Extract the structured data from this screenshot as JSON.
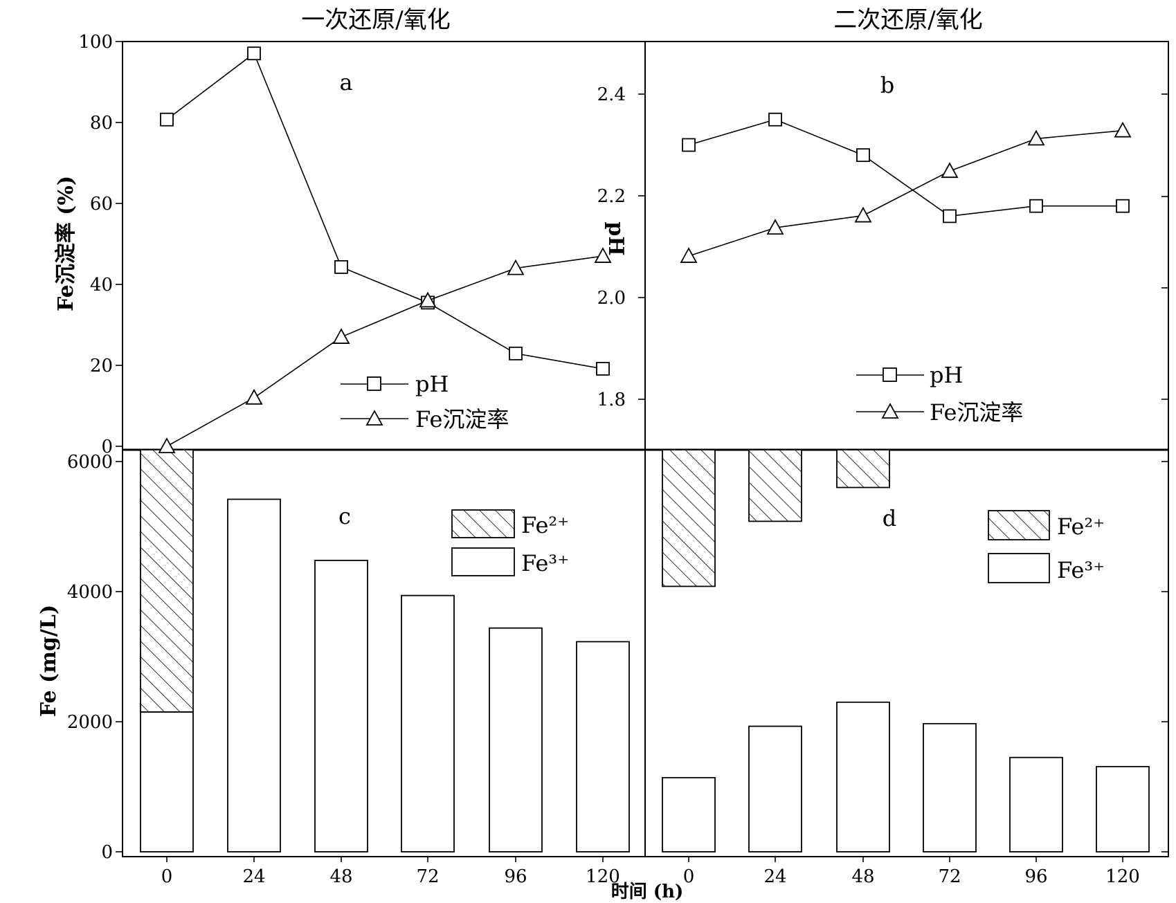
{
  "figure": {
    "titles": {
      "left": "一次还原/氧化",
      "right": "二次还原/氧化"
    },
    "left_axis_title_top": "Fe沉淀率 (%)",
    "right_axis_title_top": "pH",
    "left_axis_title_bottom": "Fe (mg/L)",
    "x_axis_title": "时间 (h)",
    "legend_line": {
      "ph": "pH",
      "fe": "Fe沉淀率"
    },
    "legend_bar": {
      "fe2": "Fe²⁺",
      "fe3": "Fe³⁺"
    },
    "panel_labels": [
      "a",
      "b",
      "c",
      "d"
    ]
  },
  "colors": {
    "axis": "#000000",
    "background": "#ffffff"
  },
  "chart_data": [
    {
      "panel": "a",
      "type": "line",
      "title": "一次还原/氧化",
      "x": [
        0,
        24,
        48,
        72,
        96,
        120
      ],
      "y_left": {
        "label": "Fe沉淀率 (%)",
        "lim": [
          0,
          100
        ],
        "ticks": [
          0,
          20,
          40,
          60,
          80,
          100
        ]
      },
      "y_right": {
        "label": "pH",
        "lim": [
          1.7,
          2.5
        ],
        "ticks": [
          1.8,
          2.0,
          2.2,
          2.4
        ]
      },
      "series": [
        {
          "name": "pH",
          "axis": "right",
          "marker": "square",
          "values": [
            2.35,
            2.48,
            2.06,
            1.99,
            1.89,
            1.86
          ]
        },
        {
          "name": "Fe沉淀率",
          "axis": "left",
          "marker": "triangle",
          "values": [
            0,
            12,
            27,
            36,
            44,
            47
          ]
        }
      ],
      "legend": "bottom-center"
    },
    {
      "panel": "b",
      "type": "line",
      "title": "二次还原/氧化",
      "x": [
        0,
        24,
        48,
        72,
        96,
        120
      ],
      "y_left": {
        "lim": [
          0,
          100
        ]
      },
      "y_right": {
        "lim": [
          1.7,
          2.5
        ],
        "ticks": [
          1.8,
          2.0,
          2.2,
          2.4
        ]
      },
      "series": [
        {
          "name": "pH",
          "axis": "right",
          "marker": "square",
          "values": [
            2.3,
            2.35,
            2.28,
            2.16,
            2.18,
            2.18
          ]
        },
        {
          "name": "Fe沉淀率",
          "axis": "left",
          "marker": "triangle",
          "values": [
            47,
            54,
            57,
            68,
            76,
            78
          ]
        }
      ],
      "legend": "bottom-center"
    },
    {
      "panel": "c",
      "type": "bar",
      "categories": [
        "0",
        "24",
        "48",
        "72",
        "96",
        "120"
      ],
      "x_label": "时间 (h)",
      "y_label": "Fe (mg/L)",
      "ylim": [
        0,
        6200
      ],
      "yticks": [
        0,
        2000,
        4000,
        6000
      ],
      "series": [
        {
          "name": "Fe³⁺",
          "pattern": "none",
          "values": [
            2150,
            5420,
            4480,
            3940,
            3440,
            3230
          ]
        },
        {
          "name": "Fe²⁺",
          "pattern": "hatch",
          "values": [
            4050,
            0,
            0,
            0,
            0,
            0
          ]
        }
      ],
      "stacked": true,
      "legend": "top-right"
    },
    {
      "panel": "d",
      "type": "bar",
      "categories": [
        "0",
        "24",
        "48",
        "72",
        "96",
        "120"
      ],
      "x_label": "时间 (h)",
      "ylim": [
        0,
        6200
      ],
      "yticks": [
        0,
        2000,
        4000,
        6000
      ],
      "series": [
        {
          "name": "Fe³⁺",
          "pattern": "none",
          "values": [
            1140,
            1930,
            2300,
            1970,
            1450,
            1310
          ]
        },
        {
          "name": "Fe²⁺",
          "pattern": "hatch",
          "values": [
            2100,
            1100,
            580,
            0,
            0,
            0
          ]
        }
      ],
      "fe2_hangs_from_top": true,
      "legend": "top-right"
    }
  ]
}
